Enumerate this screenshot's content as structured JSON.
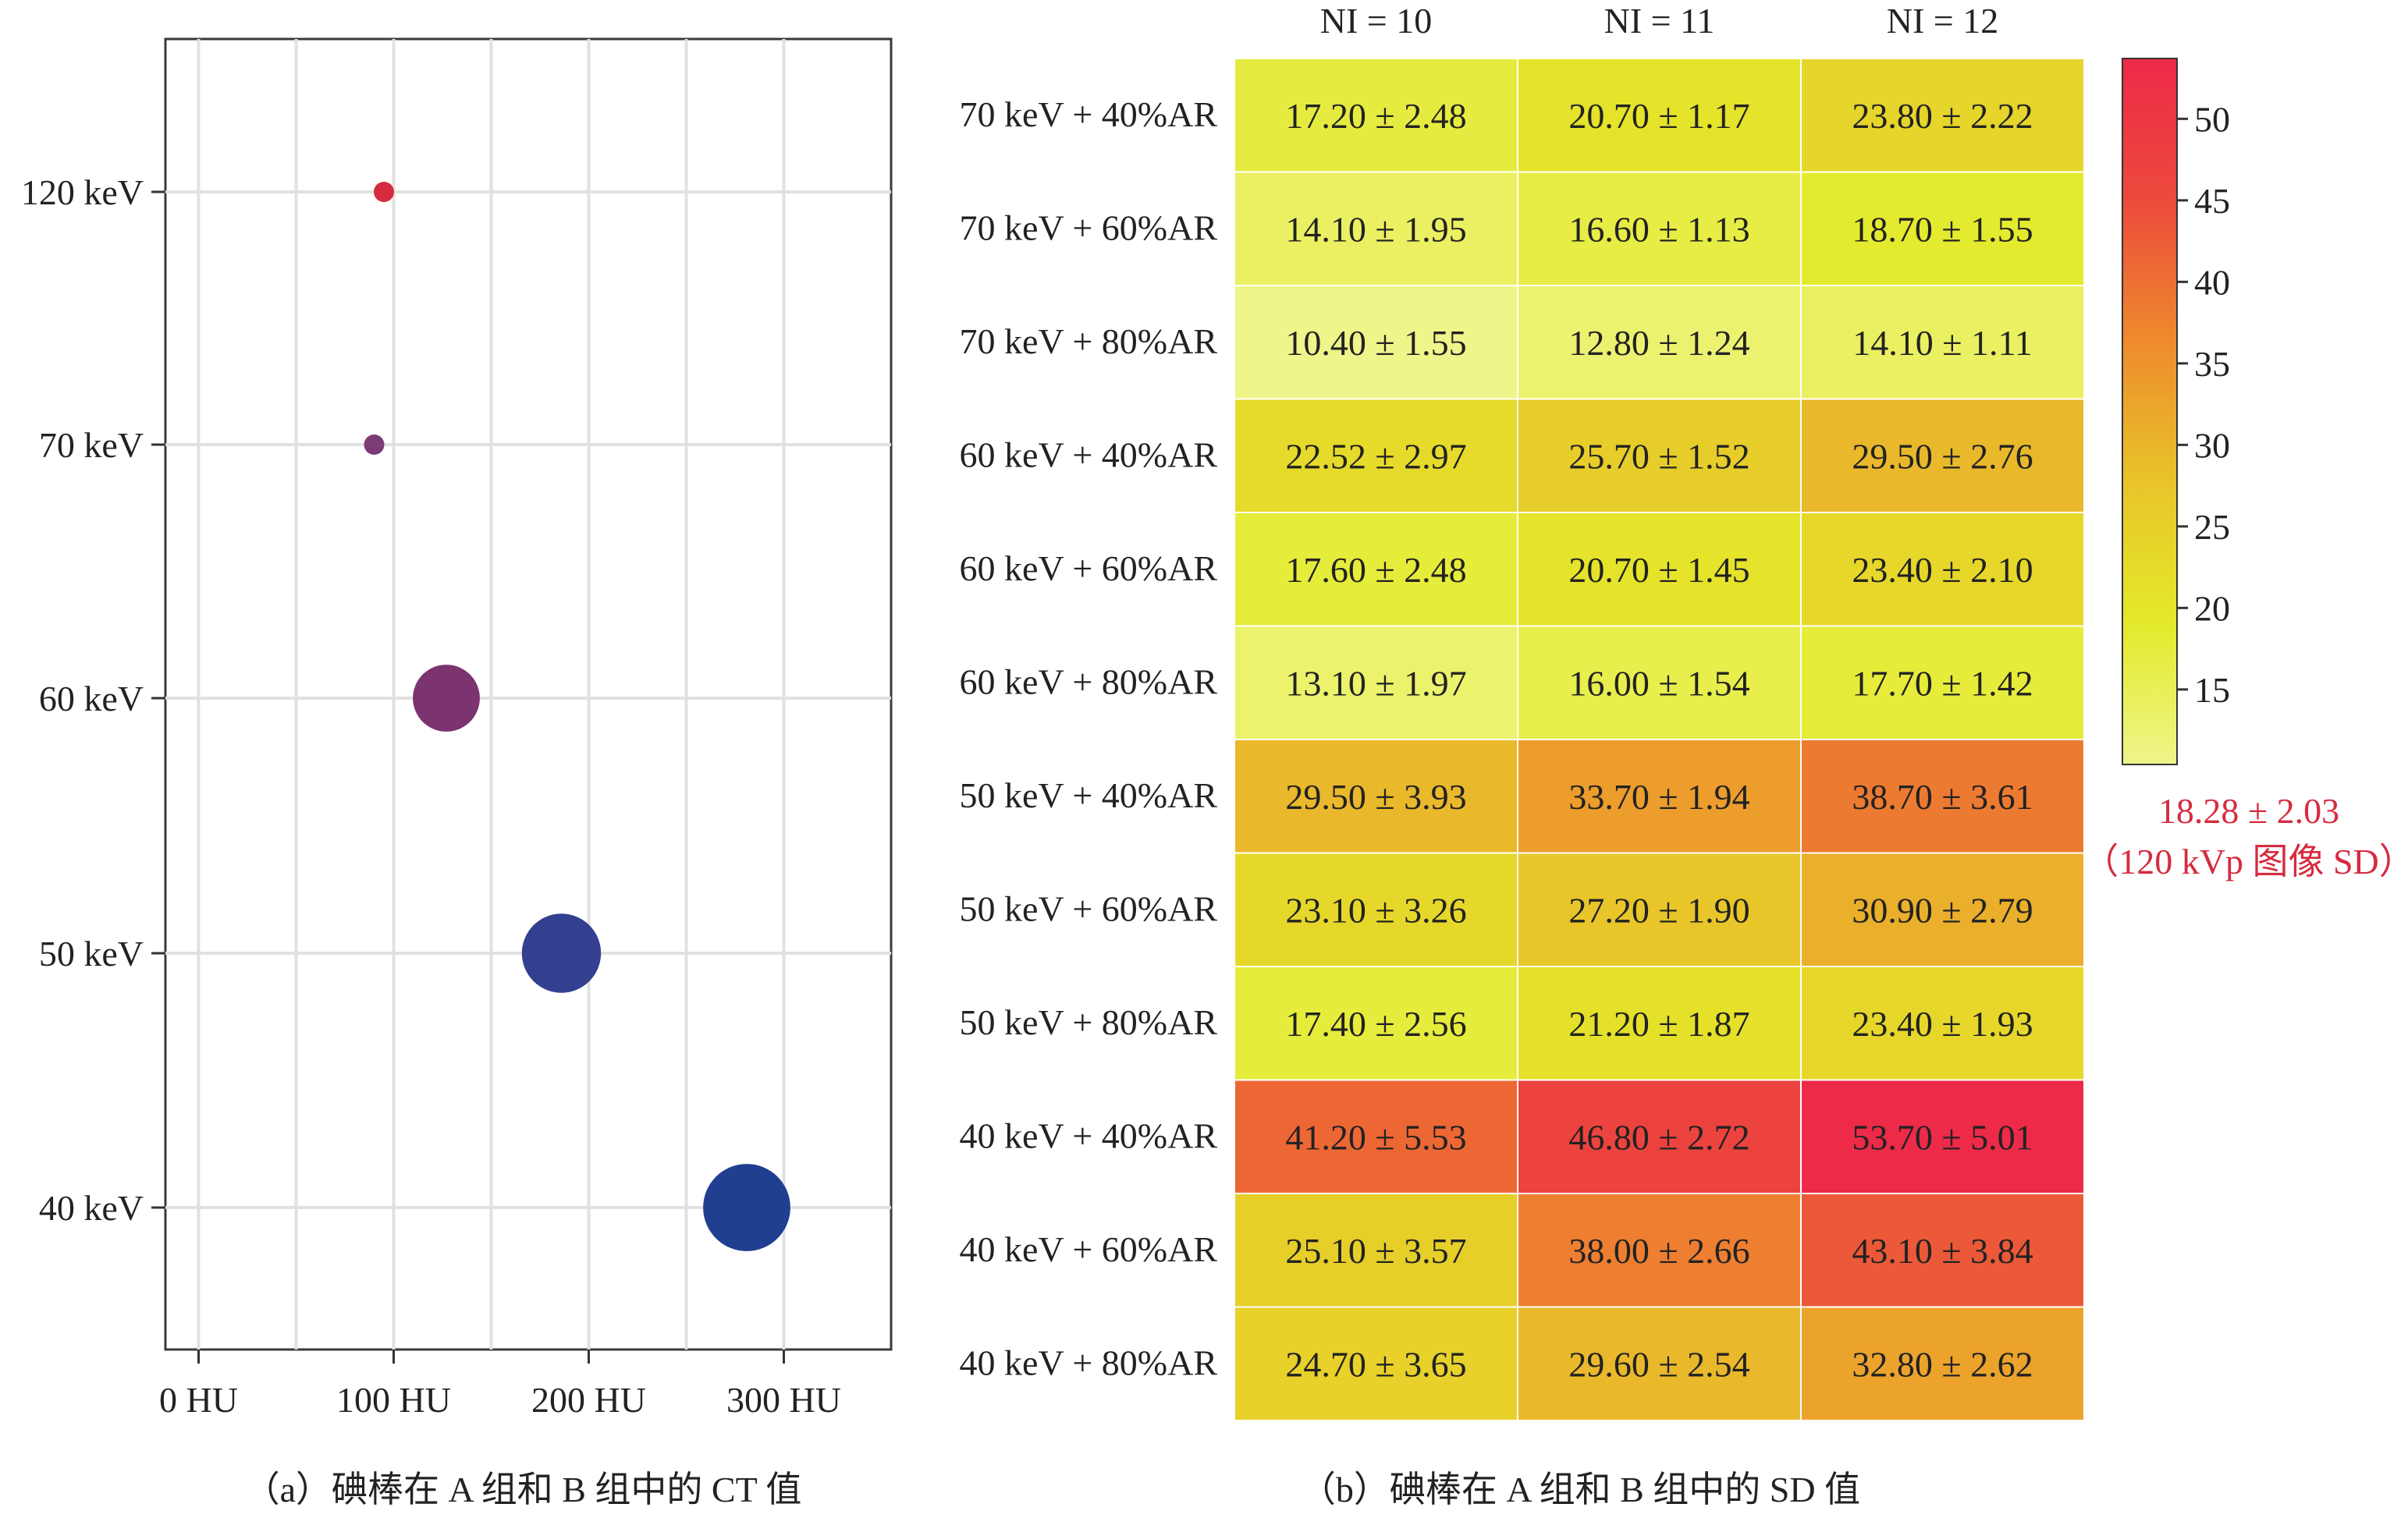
{
  "chart_data": [
    {
      "type": "scatter",
      "caption": "（a）碘棒在 A 组和 B 组中的 CT 值",
      "x_ticks": [
        {
          "value": 0,
          "label": "0 HU"
        },
        {
          "value": 100,
          "label": "100 HU"
        },
        {
          "value": 200,
          "label": "200 HU"
        },
        {
          "value": 300,
          "label": "300 HU"
        }
      ],
      "xlim": [
        -17,
        355
      ],
      "categories": [
        "40 keV",
        "50 keV",
        "60 keV",
        "70 keV",
        "120 keV"
      ],
      "points": [
        {
          "category": "120 keV",
          "x": 95,
          "size": 1,
          "color": "#d62b3f"
        },
        {
          "category": "70 keV",
          "x": 90,
          "size": 1,
          "color": "#7d3b77"
        },
        {
          "category": "60 keV",
          "x": 127,
          "size": 3.3,
          "color": "#7b346f"
        },
        {
          "category": "50 keV",
          "x": 186,
          "size": 3.9,
          "color": "#33408f"
        },
        {
          "category": "40 keV",
          "x": 281,
          "size": 4.3,
          "color": "#213f90"
        }
      ],
      "grid": true
    },
    {
      "type": "heatmap",
      "caption": "（b）碘棒在 A 组和 B 组中的 SD 值",
      "columns": [
        "NI = 10",
        "NI = 11",
        "NI = 12"
      ],
      "rows": [
        {
          "label": "70 keV + 40%AR",
          "values": [
            17.2,
            20.7,
            23.8
          ],
          "sd": [
            2.48,
            1.17,
            2.22
          ],
          "cells": [
            "17.20 ± 2.48",
            "20.70 ± 1.17",
            "23.80 ± 2.22"
          ]
        },
        {
          "label": "70 keV + 60%AR",
          "values": [
            14.1,
            16.6,
            18.7
          ],
          "sd": [
            1.95,
            1.13,
            1.55
          ],
          "cells": [
            "14.10 ± 1.95",
            "16.60 ± 1.13",
            "18.70 ± 1.55"
          ]
        },
        {
          "label": "70 keV + 80%AR",
          "values": [
            10.4,
            12.8,
            14.1
          ],
          "sd": [
            1.55,
            1.24,
            1.11
          ],
          "cells": [
            "10.40 ± 1.55",
            "12.80 ± 1.24",
            "14.10 ± 1.11"
          ]
        },
        {
          "label": "60 keV + 40%AR",
          "values": [
            22.52,
            25.7,
            29.5
          ],
          "sd": [
            2.97,
            1.52,
            2.76
          ],
          "cells": [
            "22.52 ± 2.97",
            "25.70 ± 1.52",
            "29.50 ± 2.76"
          ]
        },
        {
          "label": "60 keV + 60%AR",
          "values": [
            17.6,
            20.7,
            23.4
          ],
          "sd": [
            2.48,
            1.45,
            2.1
          ],
          "cells": [
            "17.60 ± 2.48",
            "20.70 ± 1.45",
            "23.40 ± 2.10"
          ]
        },
        {
          "label": "60 keV + 80%AR",
          "values": [
            13.1,
            16.0,
            17.7
          ],
          "sd": [
            1.97,
            1.54,
            1.42
          ],
          "cells": [
            "13.10 ± 1.97",
            "16.00 ± 1.54",
            "17.70 ± 1.42"
          ]
        },
        {
          "label": "50 keV + 40%AR",
          "values": [
            29.5,
            33.7,
            38.7
          ],
          "sd": [
            3.93,
            1.94,
            3.61
          ],
          "cells": [
            "29.50 ± 3.93",
            "33.70 ± 1.94",
            "38.70 ± 3.61"
          ]
        },
        {
          "label": "50 keV + 60%AR",
          "values": [
            23.1,
            27.2,
            30.9
          ],
          "sd": [
            3.26,
            1.9,
            2.79
          ],
          "cells": [
            "23.10 ± 3.26",
            "27.20 ± 1.90",
            "30.90 ± 2.79"
          ]
        },
        {
          "label": "50 keV + 80%AR",
          "values": [
            17.4,
            21.2,
            23.4
          ],
          "sd": [
            2.56,
            1.87,
            1.93
          ],
          "cells": [
            "17.40 ± 2.56",
            "21.20 ± 1.87",
            "23.40 ± 1.93"
          ]
        },
        {
          "label": "40 keV + 40%AR",
          "values": [
            41.2,
            46.8,
            53.7
          ],
          "sd": [
            5.53,
            2.72,
            5.01
          ],
          "cells": [
            "41.20 ± 5.53",
            "46.80 ± 2.72",
            "53.70 ± 5.01"
          ]
        },
        {
          "label": "40 keV + 60%AR",
          "values": [
            25.1,
            38.0,
            43.1
          ],
          "sd": [
            3.57,
            2.66,
            3.84
          ],
          "cells": [
            "25.10 ± 3.57",
            "38.00 ± 2.66",
            "43.10 ± 3.84"
          ]
        },
        {
          "label": "40 keV + 80%AR",
          "values": [
            24.7,
            29.6,
            32.8
          ],
          "sd": [
            3.65,
            2.54,
            2.62
          ],
          "cells": [
            "24.70 ± 3.65",
            "29.60 ± 2.54",
            "32.80 ± 2.62"
          ]
        }
      ],
      "colorbar": {
        "min": 10.4,
        "max": 53.7,
        "ticks": [
          15,
          20,
          25,
          30,
          35,
          40,
          45,
          50
        ],
        "colors": [
          "#eef58a",
          "#e4ea2a",
          "#e8c42a",
          "#ee8b2d",
          "#ec4a3c",
          "#ed2a48"
        ]
      },
      "annotation": {
        "line1": "18.28 ± 2.03",
        "line2": "（120 kVp 图像 SD）",
        "color": "#d62b3f"
      }
    }
  ]
}
